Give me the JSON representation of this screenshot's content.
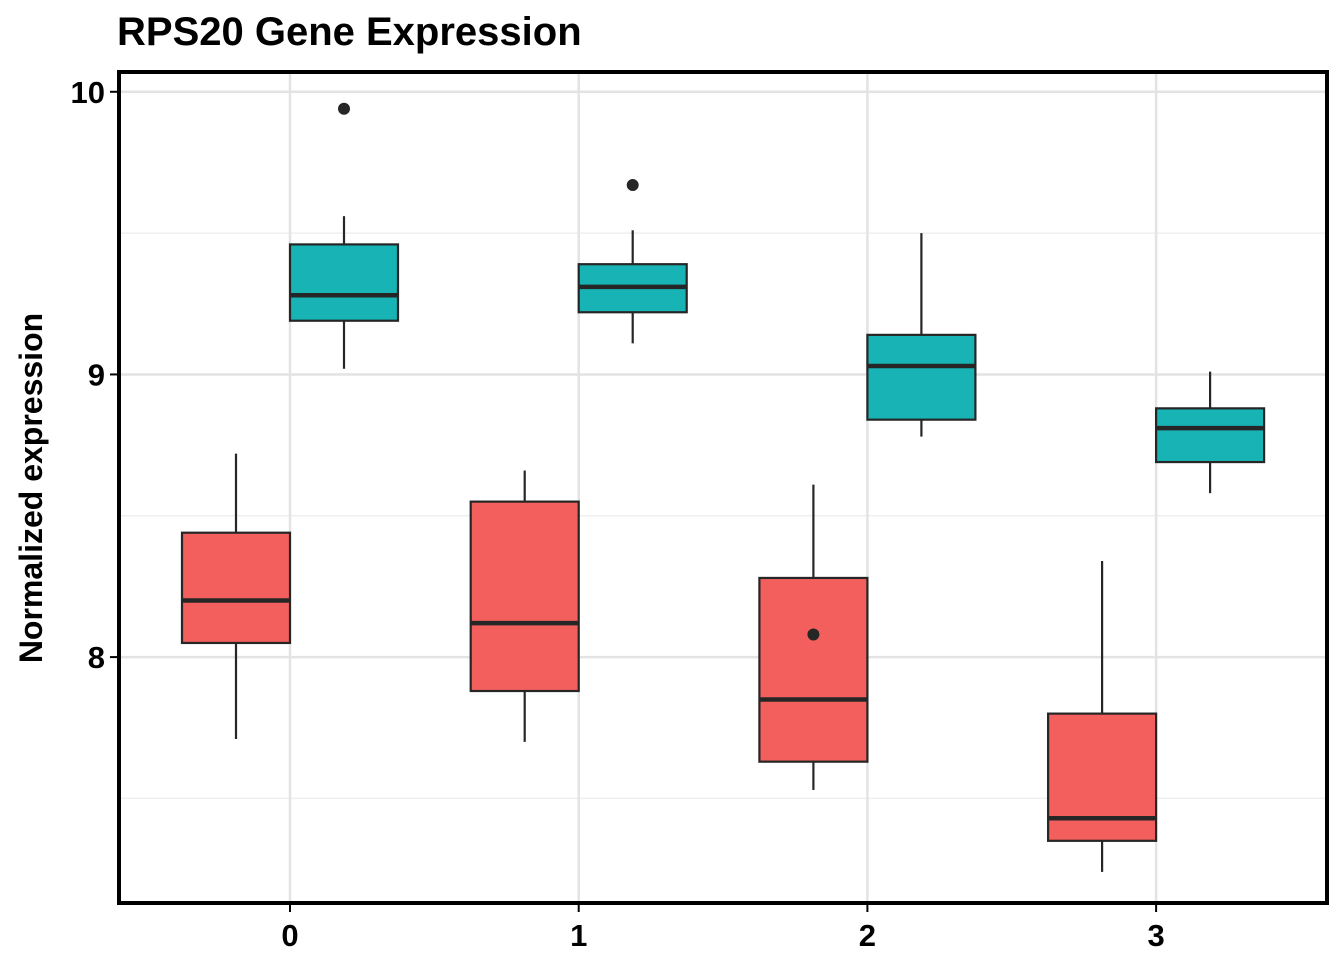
{
  "chart_data": {
    "type": "boxplot",
    "title": "RPS20 Gene Expression",
    "xlabel": "",
    "ylabel": "Normalized expression",
    "categories": [
      "0",
      "1",
      "2",
      "3"
    ],
    "ylim": [
      7.13,
      10.07
    ],
    "yticks": [
      8,
      9,
      10
    ],
    "grid": true,
    "legend": "none",
    "series": [
      {
        "color": "#F25F5C",
        "boxes": [
          {
            "category": "0",
            "whisker_low": 7.71,
            "q1": 8.05,
            "median": 8.2,
            "q3": 8.44,
            "whisker_high": 8.72,
            "outliers": []
          },
          {
            "category": "1",
            "whisker_low": 7.7,
            "q1": 7.88,
            "median": 8.12,
            "q3": 8.55,
            "whisker_high": 8.66,
            "outliers": []
          },
          {
            "category": "2",
            "whisker_low": 7.53,
            "q1": 7.63,
            "median": 7.85,
            "q3": 8.28,
            "whisker_high": 8.61,
            "outliers": [
              8.08
            ]
          },
          {
            "category": "3",
            "whisker_low": 7.24,
            "q1": 7.35,
            "median": 7.43,
            "q3": 7.8,
            "whisker_high": 8.34,
            "outliers": []
          }
        ]
      },
      {
        "color": "#17B3B5",
        "boxes": [
          {
            "category": "0",
            "whisker_low": 9.02,
            "q1": 9.19,
            "median": 9.28,
            "q3": 9.46,
            "whisker_high": 9.56,
            "outliers": [
              9.94
            ]
          },
          {
            "category": "1",
            "whisker_low": 9.11,
            "q1": 9.22,
            "median": 9.31,
            "q3": 9.39,
            "whisker_high": 9.51,
            "outliers": [
              9.67
            ]
          },
          {
            "category": "2",
            "whisker_low": 8.78,
            "q1": 8.84,
            "median": 9.03,
            "q3": 9.14,
            "whisker_high": 9.5,
            "outliers": []
          },
          {
            "category": "3",
            "whisker_low": 8.58,
            "q1": 8.69,
            "median": 8.81,
            "q3": 8.88,
            "whisker_high": 9.01,
            "outliers": []
          }
        ]
      }
    ]
  }
}
